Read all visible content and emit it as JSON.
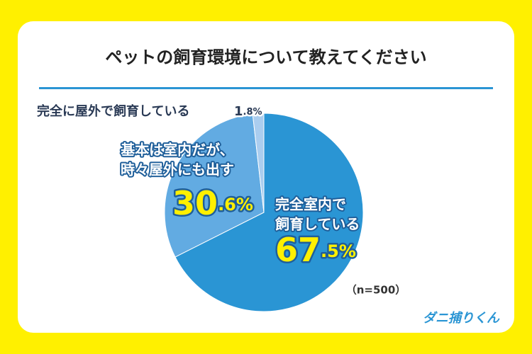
{
  "chart_data": {
    "type": "pie",
    "title": "ペットの飼育環境について教えてください",
    "categories": [
      [
        "完全室内で",
        "飼育している"
      ],
      [
        "基本は室内だが、",
        "時々屋外にも出す"
      ],
      [
        "完全に屋外で飼育している"
      ]
    ],
    "values": [
      67.5,
      30.6,
      1.8
    ],
    "value_labels": [
      "67.5%",
      "30.6%",
      "1.8%"
    ],
    "colors": [
      "#2a95d4",
      "#62abe2",
      "#aacdef"
    ],
    "note": "（n=500）",
    "brand": "ダニ捕りくん"
  }
}
